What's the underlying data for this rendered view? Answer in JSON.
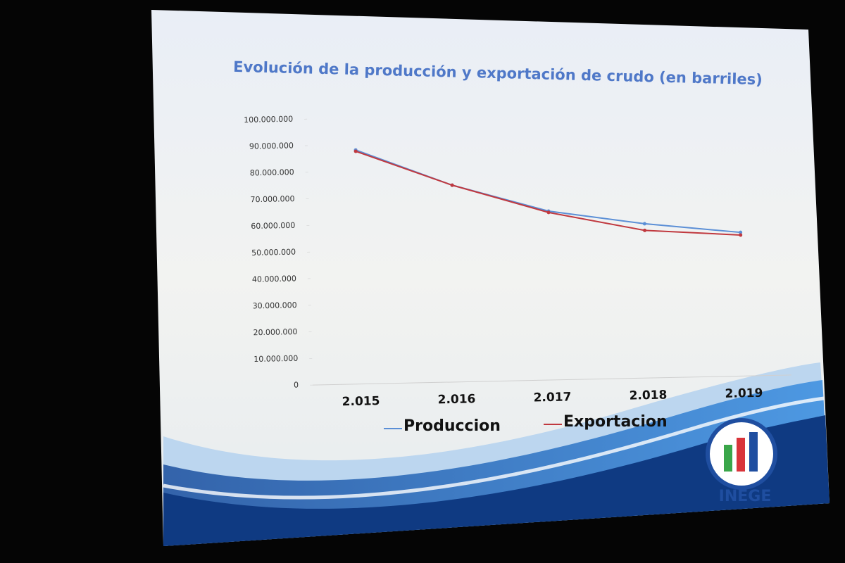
{
  "chart_data": {
    "type": "line",
    "title": "Evolución de la producción y exportación de crudo (en barriles)",
    "categories": [
      "2.015",
      "2.016",
      "2.017",
      "2.018",
      "2.019"
    ],
    "series": [
      {
        "name": "Produccion",
        "color": "#5b8fd6",
        "values": [
          88000000,
          74000000,
          63500000,
          58000000,
          54000000
        ]
      },
      {
        "name": "Exportacion",
        "color": "#c0393f",
        "values": [
          87500000,
          74000000,
          63000000,
          55500000,
          53000000
        ]
      }
    ],
    "ylim": [
      0,
      100000000
    ],
    "yticks": [
      0,
      {
        "value": 10000000,
        "label": "10.000.000"
      },
      {
        "value": 20000000,
        "label": "20.000.000"
      },
      {
        "value": 30000000,
        "label": "30.000.000"
      },
      {
        "value": 40000000,
        "label": "40.000.000"
      },
      {
        "value": 50000000,
        "label": "50.000.000"
      },
      {
        "value": 60000000,
        "label": "60.000.000"
      },
      {
        "value": 70000000,
        "label": "70.000.000"
      },
      {
        "value": 80000000,
        "label": "80.000.000"
      },
      {
        "value": 90000000,
        "label": "90.000.000"
      },
      {
        "value": 100000000,
        "label": "100.000.000"
      }
    ],
    "legend": "bottom",
    "annotations": [
      "INEGE"
    ]
  }
}
